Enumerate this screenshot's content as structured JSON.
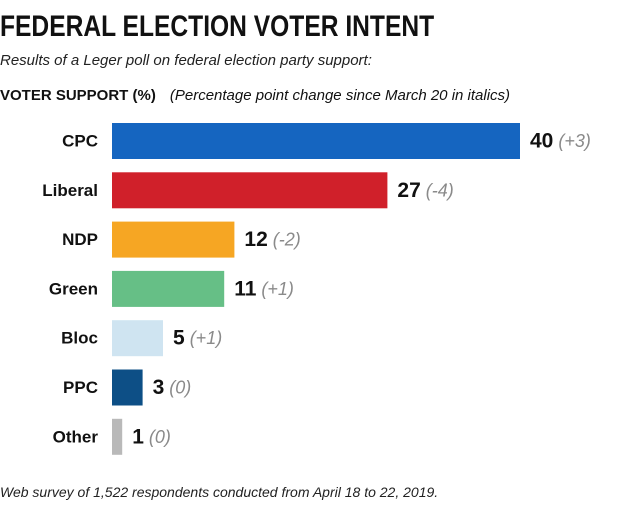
{
  "header": {
    "title": "FEDERAL ELECTION VOTER INTENT",
    "subtitle": "Results of a Leger poll on federal election party support:",
    "section_label": "VOTER SUPPORT (%)",
    "section_note": "(Percentage point change since March 20 in italics)"
  },
  "footer": {
    "note": "Web survey of 1,522 respondents conducted from April 18 to 22, 2019."
  },
  "chart_data": {
    "type": "bar",
    "orientation": "horizontal",
    "categories": [
      "CPC",
      "Liberal",
      "NDP",
      "Green",
      "Bloc",
      "PPC",
      "Other"
    ],
    "values": [
      40,
      27,
      12,
      11,
      5,
      3,
      1
    ],
    "changes": [
      "(+3)",
      "(-4)",
      "(-2)",
      "(+1)",
      "(+1)",
      "(0)",
      "(0)"
    ],
    "colors": [
      "#1565c0",
      "#d0202a",
      "#f6a623",
      "#66bf86",
      "#cfe4f1",
      "#0d4f86",
      "#b9b9b9"
    ],
    "ylabel": "VOTER SUPPORT (%)",
    "xlim": [
      0,
      40
    ],
    "grid": false,
    "legend": "none"
  }
}
